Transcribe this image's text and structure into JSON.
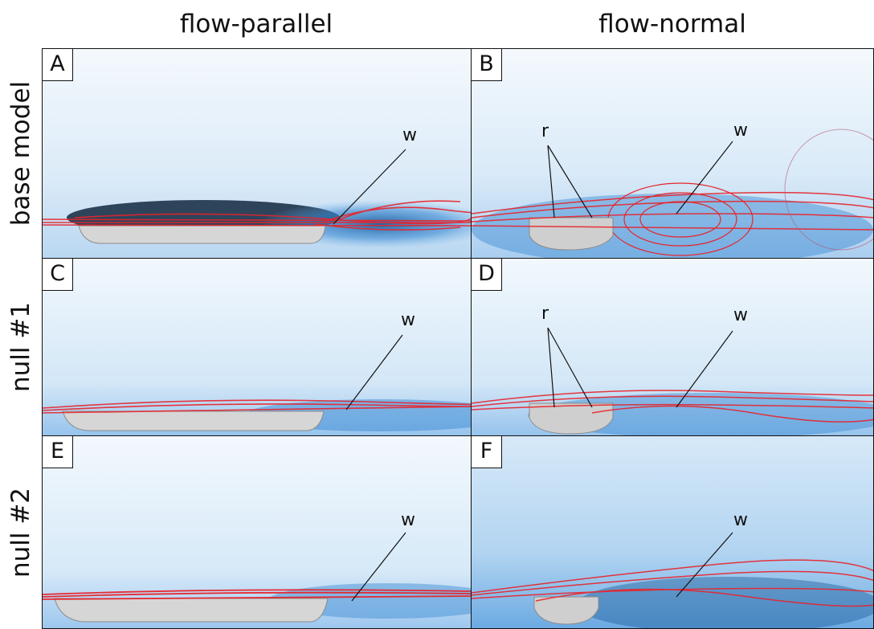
{
  "columns": [
    "flow-parallel",
    "flow-normal"
  ],
  "rows": [
    "base model",
    "null #1",
    "null #2"
  ],
  "panels": {
    "A": {
      "letter": "A",
      "labels": [
        "w"
      ]
    },
    "B": {
      "letter": "B",
      "labels": [
        "r",
        "w"
      ]
    },
    "C": {
      "letter": "C",
      "labels": [
        "w"
      ]
    },
    "D": {
      "letter": "D",
      "labels": [
        "r",
        "w"
      ]
    },
    "E": {
      "letter": "E",
      "labels": [
        "w"
      ]
    },
    "F": {
      "letter": "F",
      "labels": [
        "w"
      ]
    }
  },
  "colors": {
    "streamline": "#e8232a",
    "flow_field": "#3f8fd6",
    "background": "#eaf3fb",
    "body": "#cfcfcf"
  }
}
